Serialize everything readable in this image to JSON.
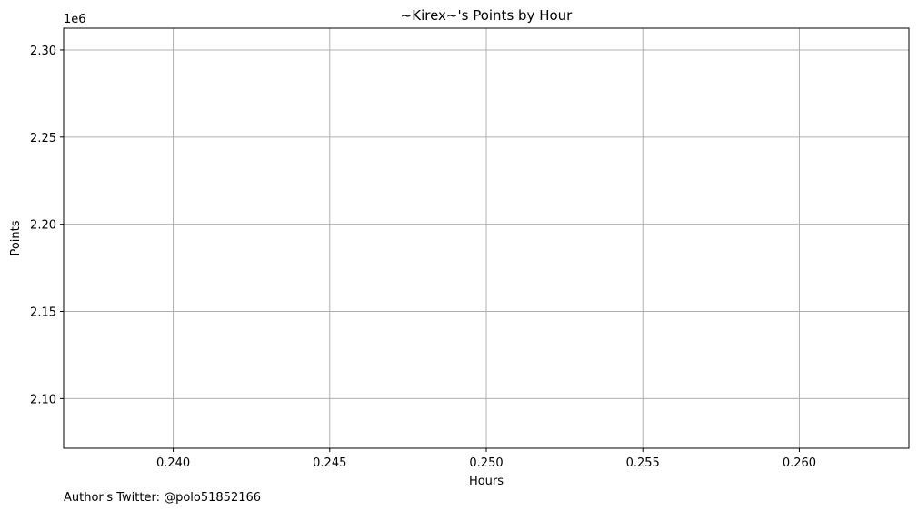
{
  "chart_data": {
    "type": "line",
    "title": "~Kirex~'s Points by Hour",
    "xlabel": "Hours",
    "ylabel": "Points",
    "y_offset_label": "1e6",
    "xlim": [
      0.2365,
      0.2635
    ],
    "ylim": [
      2.0715,
      2.3125
    ],
    "y_scale_factor": 1000000,
    "x_ticks": [
      0.24,
      0.245,
      0.25,
      0.255,
      0.26
    ],
    "x_tick_labels": [
      "0.240",
      "0.245",
      "0.250",
      "0.255",
      "0.260"
    ],
    "y_ticks": [
      2.1,
      2.15,
      2.2,
      2.25,
      2.3
    ],
    "y_tick_labels": [
      "2.10",
      "2.15",
      "2.20",
      "2.25",
      "2.30"
    ],
    "grid": true,
    "series": [
      {
        "x": [],
        "y": []
      }
    ],
    "colors": {
      "grid": "#b0b0b0",
      "axes": "#000000",
      "series": "#1f77b4"
    }
  },
  "footer": {
    "note": "Author's Twitter: @polo51852166"
  }
}
